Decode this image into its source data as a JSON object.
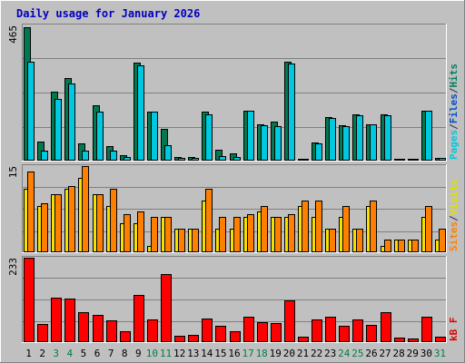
{
  "chart_data": {
    "type": "bar",
    "title": "Daily usage for January 2026",
    "x": [
      "1",
      "2",
      "3",
      "4",
      "5",
      "6",
      "7",
      "8",
      "9",
      "10",
      "11",
      "12",
      "13",
      "14",
      "15",
      "16",
      "17",
      "18",
      "19",
      "20",
      "21",
      "22",
      "23",
      "24",
      "25",
      "26",
      "27",
      "28",
      "29",
      "30",
      "31"
    ],
    "weekend_days": [
      "3",
      "4",
      "10",
      "11",
      "17",
      "18",
      "24",
      "25",
      "31"
    ],
    "panels": [
      {
        "id": "hits_files_pages",
        "max_label": "465",
        "ylim": [
          0,
          465
        ],
        "legend": [
          {
            "text": "Pages",
            "color": "#00c8e0"
          },
          {
            "text": "/",
            "color": "#2f2f4f"
          },
          {
            "text": "Files",
            "color": "#0050c8"
          },
          {
            "text": "/",
            "color": "#2f2f4f"
          },
          {
            "text": "Hits",
            "color": "#008060"
          }
        ],
        "series": [
          {
            "name": "Hits",
            "color": "#007850",
            "values": [
              460,
              62,
              237,
              283,
              56,
              188,
              48,
              16,
              335,
              165,
              107,
              10,
              10,
              165,
              33,
              22,
              170,
              123,
              132,
              339,
              4,
              60,
              148,
              118,
              158,
              124,
              158,
              4,
              4,
              170,
              7
            ]
          },
          {
            "name": "Files",
            "color": "#00c8e0",
            "values": [
              340,
              30,
              212,
              263,
              30,
              167,
              32,
              10,
              328,
              165,
              50,
              7,
              7,
              157,
              12,
              10,
              170,
              118,
              115,
              332,
              4,
              56,
              143,
              116,
              155,
              122,
              155,
              4,
              4,
              170,
              5
            ]
          }
        ]
      },
      {
        "id": "visits_sites",
        "max_label": "15",
        "ylim": [
          0,
          15
        ],
        "legend": [
          {
            "text": "Sites",
            "color": "#ff8000"
          },
          {
            "text": "/",
            "color": "#2f2f4f"
          },
          {
            "text": "Visits",
            "color": "#e0e000"
          }
        ],
        "series": [
          {
            "name": "Visits",
            "color": "#f5e000",
            "values": [
              11,
              8,
              10,
              11,
              13,
              10,
              8,
              5,
              5,
              1,
              6,
              4,
              4,
              9,
              4,
              4,
              6,
              7,
              6,
              6,
              8,
              6,
              4,
              6,
              4,
              8,
              1,
              2,
              2,
              6,
              2
            ]
          },
          {
            "name": "Sites",
            "color": "#ff8000",
            "values": [
              14,
              8.5,
              10,
              11.5,
              15,
              10,
              11,
              6.5,
              7,
              6,
              6,
              4,
              4,
              11,
              6,
              6,
              6.5,
              8,
              6,
              6.5,
              9,
              9,
              4,
              8,
              4,
              9,
              2,
              2,
              2,
              8,
              4
            ]
          }
        ]
      },
      {
        "id": "kbytes",
        "max_label": "233",
        "ylim": [
          0,
          233
        ],
        "legend": [
          {
            "text": "kB F",
            "color": "#e00000"
          }
        ],
        "series": [
          {
            "name": "kB F",
            "color": "#ff0000",
            "values": [
              233,
              48,
              122,
              118,
              80,
              74,
              58,
              28,
              130,
              62,
              187,
              15,
              18,
              64,
              42,
              28,
              68,
              52,
              50,
              114,
              12,
              62,
              68,
              42,
              62,
              45,
              80,
              10,
              8,
              68,
              12
            ]
          }
        ]
      }
    ]
  }
}
